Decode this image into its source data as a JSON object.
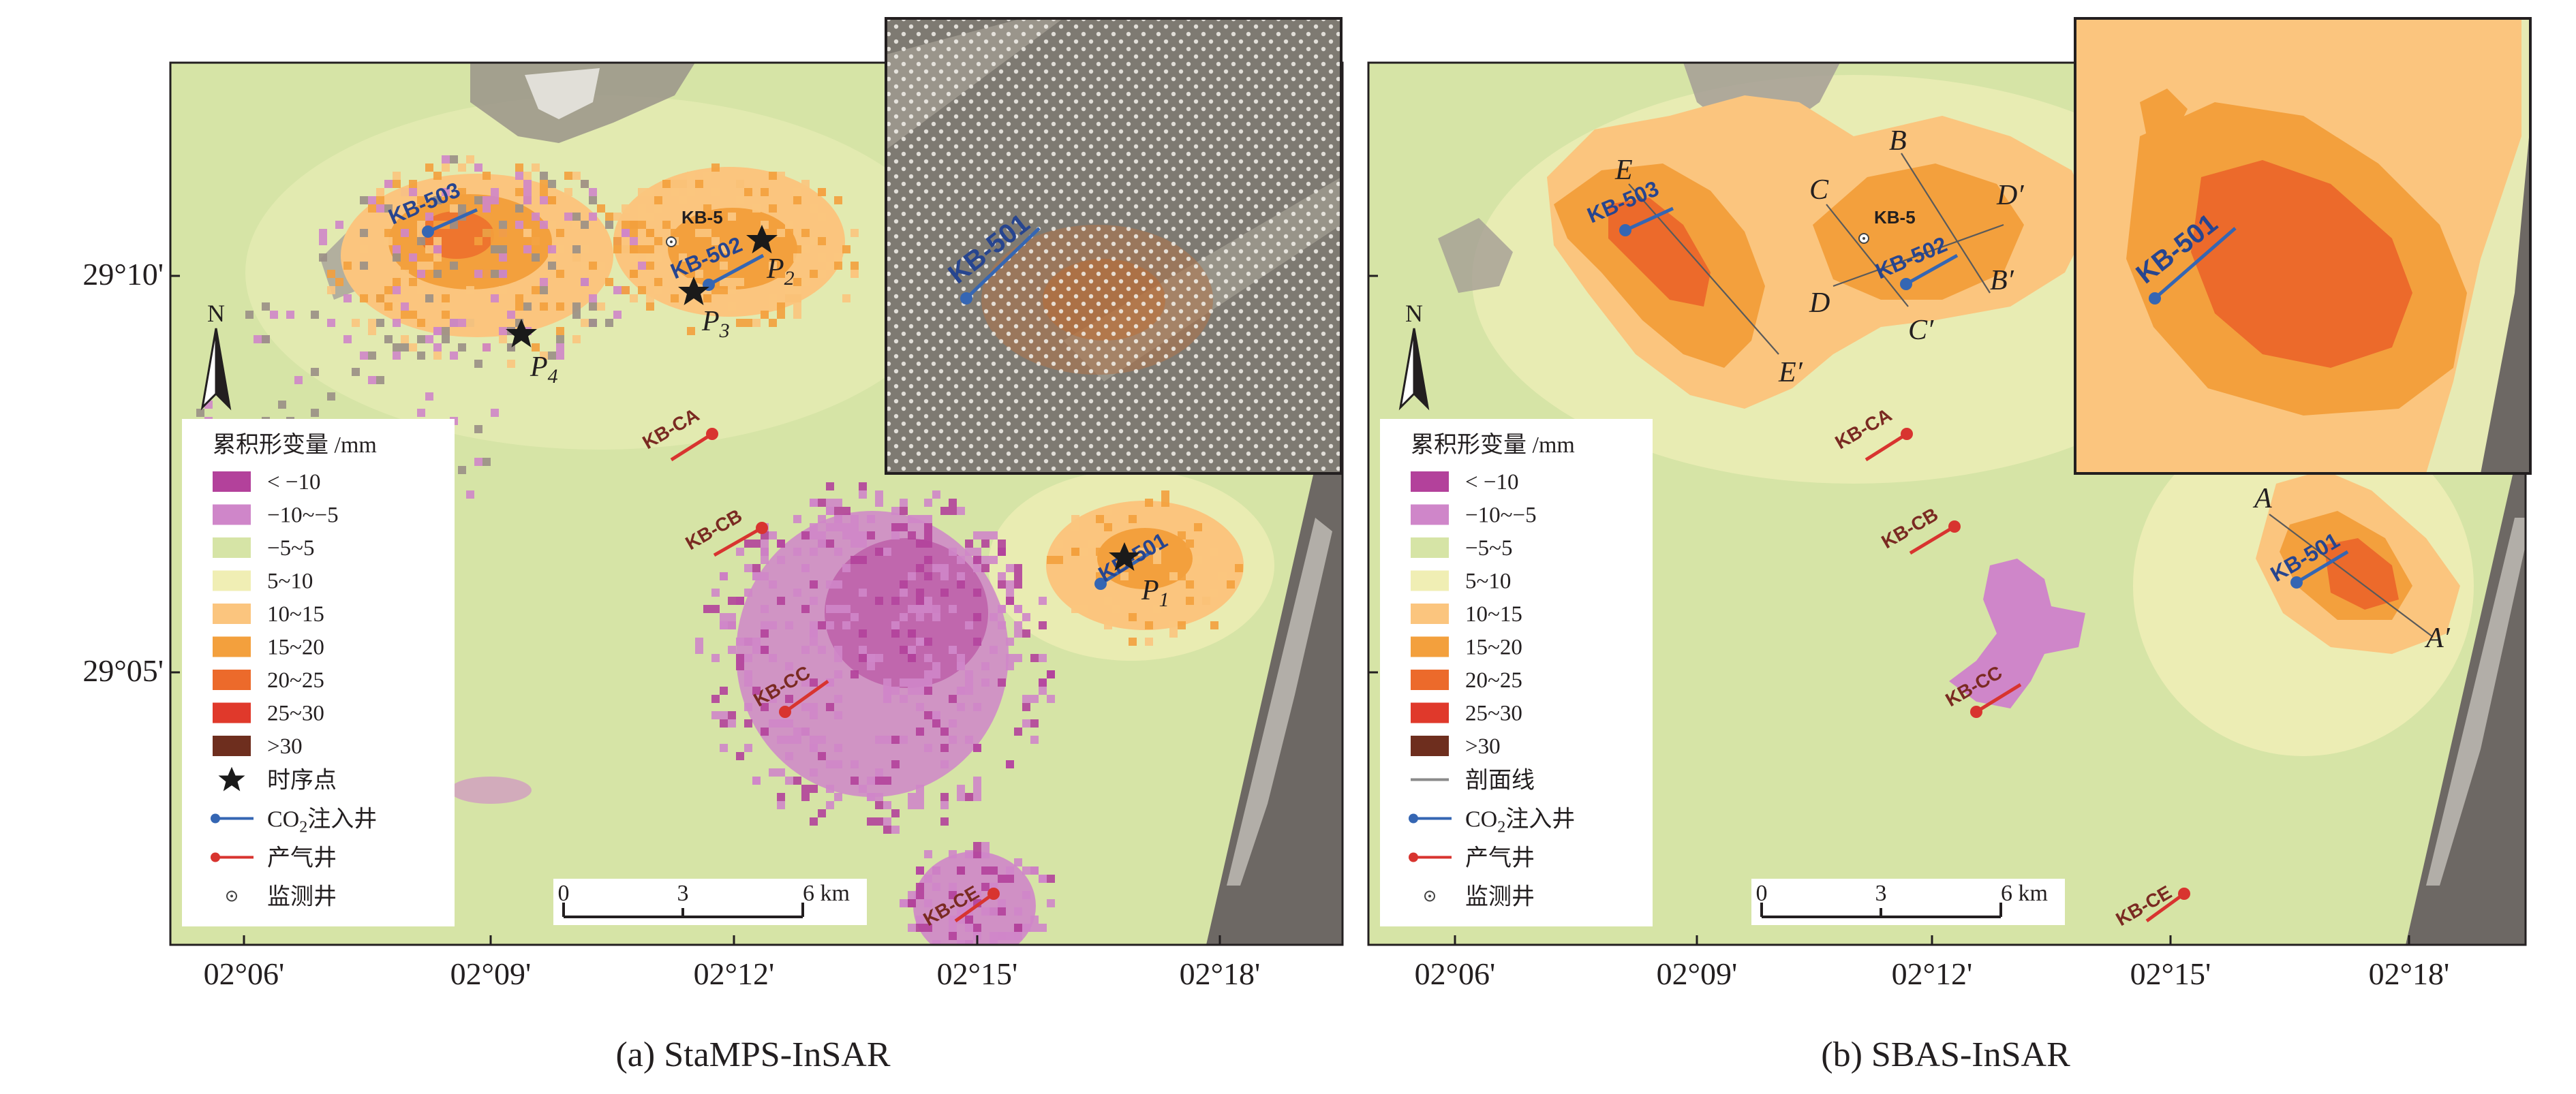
{
  "colors": {
    "background": "#d6e4a6",
    "def_lt_m10": "#b3419b",
    "def_m10_m5": "#cf86c9",
    "def_m5_5": "#d6e4a6",
    "def_5_10": "#f0eeb4",
    "def_10_15": "#fbc57e",
    "def_15_20": "#f3a03d",
    "def_20_25": "#ec6a2b",
    "def_25_30": "#e0392b",
    "def_gt_30": "#6e2e1e",
    "injection_well": "#3566b3",
    "production_well": "#d8342f",
    "timeseries_star": "#1a1a1a",
    "profile_line": "#8a8a8a",
    "well_label_blue": "#27458f",
    "well_label_red": "#7a2a22"
  },
  "panels": [
    {
      "id": "a",
      "caption": "(a) StaMPS-InSAR",
      "lat_ticks": [
        "29°10'",
        "29°05'"
      ],
      "lon_ticks": [
        "02°06'",
        "02°09'",
        "02°12'",
        "02°15'",
        "02°18'"
      ],
      "north_label": "N",
      "legend": {
        "title": "累积形变量 /mm",
        "classes": [
          {
            "label": "< −10",
            "color_key": "def_lt_m10"
          },
          {
            "label": "−10~−5",
            "color_key": "def_m10_m5"
          },
          {
            "label": "−5~5",
            "color_key": "def_m5_5"
          },
          {
            "label": "5~10",
            "color_key": "def_5_10"
          },
          {
            "label": "10~15",
            "color_key": "def_10_15"
          },
          {
            "label": "15~20",
            "color_key": "def_15_20"
          },
          {
            "label": "20~25",
            "color_key": "def_20_25"
          },
          {
            "label": "25~30",
            "color_key": "def_25_30"
          },
          {
            "label": ">30",
            "color_key": "def_gt_30"
          }
        ],
        "symbols": [
          {
            "kind": "star",
            "label": "时序点"
          },
          {
            "kind": "injection",
            "label_prefix": "CO",
            "label_sub": "2",
            "label_suffix": "注入井"
          },
          {
            "kind": "production",
            "label": "产气井"
          },
          {
            "kind": "monitor",
            "label": "监测井"
          }
        ]
      },
      "scale": {
        "labels": [
          "0",
          "3",
          "6 km"
        ]
      },
      "wells": {
        "kb503": "KB-503",
        "kb502": "KB-502",
        "kb5": "KB-5",
        "kb501": "KB-501",
        "kbca": "KB-CA",
        "kbcb": "KB-CB",
        "kbcc": "KB-CC",
        "kbce": "KB-CE",
        "inset_kb501": "KB-501"
      },
      "points": [
        {
          "letter": "P",
          "sub": "1"
        },
        {
          "letter": "P",
          "sub": "2"
        },
        {
          "letter": "P",
          "sub": "3"
        },
        {
          "letter": "P",
          "sub": "4"
        }
      ]
    },
    {
      "id": "b",
      "caption": "(b) SBAS-InSAR",
      "lat_ticks": [
        "29°10'",
        "29°05'"
      ],
      "lon_ticks": [
        "02°06'",
        "02°09'",
        "02°12'",
        "02°15'",
        "02°18'"
      ],
      "north_label": "N",
      "legend": {
        "title": "累积形变量 /mm",
        "classes": [
          {
            "label": "< −10",
            "color_key": "def_lt_m10"
          },
          {
            "label": "−10~−5",
            "color_key": "def_m10_m5"
          },
          {
            "label": "−5~5",
            "color_key": "def_m5_5"
          },
          {
            "label": "5~10",
            "color_key": "def_5_10"
          },
          {
            "label": "10~15",
            "color_key": "def_10_15"
          },
          {
            "label": "15~20",
            "color_key": "def_15_20"
          },
          {
            "label": "20~25",
            "color_key": "def_20_25"
          },
          {
            "label": "25~30",
            "color_key": "def_25_30"
          },
          {
            "label": ">30",
            "color_key": "def_gt_30"
          }
        ],
        "symbols": [
          {
            "kind": "profile",
            "label": "剖面线"
          },
          {
            "kind": "injection",
            "label_prefix": "CO",
            "label_sub": "2",
            "label_suffix": "注入井"
          },
          {
            "kind": "production",
            "label": "产气井"
          },
          {
            "kind": "monitor",
            "label": "监测井"
          }
        ]
      },
      "scale": {
        "labels": [
          "0",
          "3",
          "6 km"
        ]
      },
      "wells": {
        "kb503": "KB-503",
        "kb502": "KB-502",
        "kb5": "KB-5",
        "kb501": "KB-501",
        "kbca": "KB-CA",
        "kbcb": "KB-CB",
        "kbcc": "KB-CC",
        "kbce": "KB-CE",
        "inset_kb501": "KB-501"
      },
      "profiles": [
        {
          "start": "A",
          "end": "A′"
        },
        {
          "start": "B",
          "end": "B′"
        },
        {
          "start": "C",
          "end": "C′"
        },
        {
          "start": "D",
          "end": "D′"
        },
        {
          "start": "E",
          "end": "E′"
        }
      ]
    }
  ]
}
